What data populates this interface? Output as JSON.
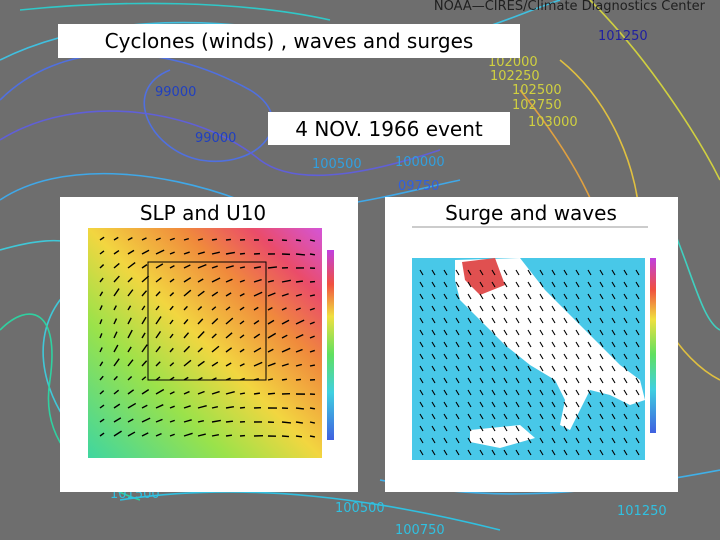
{
  "background": {
    "source": "NOAA—CIRES/Climate Diagnostics Center",
    "contour_labels": [
      "99000",
      "99000",
      "101250",
      "102000",
      "102250",
      "102500",
      "102750",
      "103000",
      "100500",
      "100000",
      "09750",
      "101500",
      "100500",
      "100750",
      "101250"
    ]
  },
  "header": {
    "title": "Cyclones (winds) , waves and surges",
    "event": "4 NOV. 1966 event"
  },
  "panels": [
    {
      "caption": "SLP and U10"
    },
    {
      "caption": "Surge and waves"
    }
  ]
}
